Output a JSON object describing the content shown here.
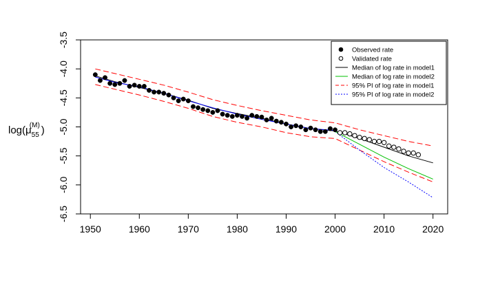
{
  "chart_data": {
    "type": "line",
    "title": "",
    "xlabel": "",
    "ylabel": {
      "base": "log(",
      "mu": "μ",
      "sub": "55",
      "sup": "(M)",
      "close": ")"
    },
    "xlim": [
      1948,
      2023
    ],
    "ylim": [
      -6.5,
      -3.5
    ],
    "x_ticks": [
      1950,
      1960,
      1970,
      1980,
      1990,
      2000,
      2010,
      2020
    ],
    "x_tick_labels": [
      "1950",
      "1960",
      "1970",
      "1980",
      "1990",
      "2000",
      "2010",
      "2020"
    ],
    "y_ticks": [
      -3.5,
      -4.0,
      -4.5,
      -5.0,
      -5.5,
      -6.0,
      -6.5
    ],
    "y_tick_labels": [
      "-3.5",
      "-4.0",
      "-4.5",
      "-5.0",
      "-5.5",
      "-6.0",
      "-6.5"
    ],
    "grid": false,
    "legend_position": "top-right",
    "legend": [
      {
        "label": "Observed rate",
        "symbol": "filled-circle",
        "color": "#000000"
      },
      {
        "label": "Validated rate",
        "symbol": "open-circle",
        "color": "#000000"
      },
      {
        "label": "Median of log rate in model1",
        "symbol": "solid-line",
        "color": "#000000"
      },
      {
        "label": "Median of log rate in model2",
        "symbol": "solid-line",
        "color": "#00c000"
      },
      {
        "label": "95% PI of log rate in model1",
        "symbol": "dashed-line",
        "color": "#ff0000"
      },
      {
        "label": "95% PI of log rate in model2",
        "symbol": "dotted-line",
        "color": "#0000ff"
      }
    ],
    "series": [
      {
        "name": "Observed rate",
        "style": "filled-points",
        "color": "#000000",
        "x": [
          1951,
          1952,
          1953,
          1954,
          1955,
          1956,
          1957,
          1958,
          1959,
          1960,
          1961,
          1962,
          1963,
          1964,
          1965,
          1966,
          1967,
          1968,
          1969,
          1970,
          1971,
          1972,
          1973,
          1974,
          1975,
          1976,
          1977,
          1978,
          1979,
          1980,
          1981,
          1982,
          1983,
          1984,
          1985,
          1986,
          1987,
          1988,
          1989,
          1990,
          1991,
          1992,
          1993,
          1994,
          1995,
          1996,
          1997,
          1998,
          1999,
          2000
        ],
        "y": [
          -4.1,
          -4.2,
          -4.15,
          -4.25,
          -4.27,
          -4.25,
          -4.2,
          -4.3,
          -4.28,
          -4.3,
          -4.3,
          -4.37,
          -4.4,
          -4.4,
          -4.42,
          -4.45,
          -4.5,
          -4.55,
          -4.52,
          -4.55,
          -4.65,
          -4.67,
          -4.7,
          -4.72,
          -4.75,
          -4.72,
          -4.78,
          -4.8,
          -4.82,
          -4.8,
          -4.82,
          -4.85,
          -4.8,
          -4.82,
          -4.83,
          -4.88,
          -4.85,
          -4.9,
          -4.92,
          -4.95,
          -5.0,
          -4.98,
          -5.0,
          -5.05,
          -5.02,
          -5.05,
          -5.08,
          -5.08,
          -5.03,
          -5.05
        ]
      },
      {
        "name": "Validated rate",
        "style": "open-points",
        "color": "#000000",
        "x": [
          2001,
          2002,
          2003,
          2004,
          2005,
          2006,
          2007,
          2008,
          2009,
          2010,
          2011,
          2012,
          2013,
          2014,
          2015,
          2016,
          2017
        ],
        "y": [
          -5.1,
          -5.1,
          -5.12,
          -5.15,
          -5.18,
          -5.2,
          -5.22,
          -5.25,
          -5.25,
          -5.27,
          -5.33,
          -5.35,
          -5.38,
          -5.42,
          -5.45,
          -5.45,
          -5.48
        ]
      },
      {
        "name": "Median of log rate in model1",
        "style": "solid-line",
        "color": "#000000",
        "x": [
          1951,
          1955,
          1960,
          1965,
          1970,
          1975,
          1980,
          1985,
          1990,
          1995,
          2000,
          2005,
          2010,
          2015,
          2020
        ],
        "y": [
          -4.12,
          -4.22,
          -4.32,
          -4.42,
          -4.54,
          -4.68,
          -4.77,
          -4.85,
          -4.95,
          -5.03,
          -5.07,
          -5.2,
          -5.35,
          -5.5,
          -5.62
        ]
      },
      {
        "name": "Median of log rate in model2",
        "style": "solid-line",
        "color": "#00c000",
        "x": [
          2000,
          2005,
          2010,
          2015,
          2020
        ],
        "y": [
          -5.08,
          -5.3,
          -5.52,
          -5.72,
          -5.9
        ]
      },
      {
        "name": "Model-fit median",
        "style": "solid-line",
        "color": "#0000ff",
        "x": [
          1951,
          1955,
          1960,
          1965,
          1970,
          1975,
          1980,
          1985,
          1990,
          1995,
          2000
        ],
        "y": [
          -4.14,
          -4.23,
          -4.31,
          -4.42,
          -4.55,
          -4.67,
          -4.78,
          -4.87,
          -4.95,
          -5.03,
          -5.06
        ]
      },
      {
        "name": "95% PI of log rate in model1 (upper)",
        "style": "dashed-line",
        "color": "#ff0000",
        "x": [
          1951,
          1955,
          1960,
          1965,
          1970,
          1975,
          1980,
          1985,
          1990,
          1995,
          2000,
          2005,
          2010,
          2015,
          2020
        ],
        "y": [
          -4.0,
          -4.08,
          -4.18,
          -4.28,
          -4.4,
          -4.53,
          -4.63,
          -4.72,
          -4.8,
          -4.88,
          -4.93,
          -5.05,
          -5.15,
          -5.25,
          -5.33
        ]
      },
      {
        "name": "95% PI of log rate in model1 (lower)",
        "style": "dashed-line",
        "color": "#ff0000",
        "x": [
          1951,
          1955,
          1960,
          1965,
          1970,
          1975,
          1980,
          1985,
          1990,
          1995,
          2000,
          2005,
          2010,
          2015,
          2020
        ],
        "y": [
          -4.27,
          -4.35,
          -4.45,
          -4.56,
          -4.68,
          -4.82,
          -4.92,
          -5.0,
          -5.1,
          -5.17,
          -5.2,
          -5.4,
          -5.6,
          -5.78,
          -5.95
        ]
      },
      {
        "name": "95% PI of log rate in model2 (lower)",
        "style": "dotted-line",
        "color": "#0000ff",
        "x": [
          2000,
          2005,
          2010,
          2015,
          2020
        ],
        "y": [
          -5.08,
          -5.4,
          -5.7,
          -5.95,
          -6.22
        ]
      }
    ]
  }
}
